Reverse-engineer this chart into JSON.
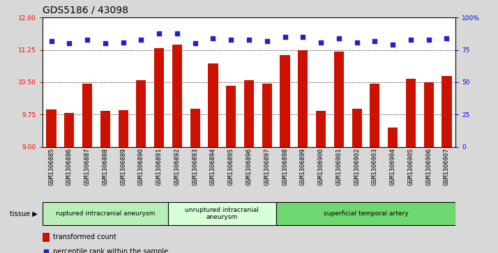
{
  "title": "GDS5186 / 43098",
  "samples": [
    "GSM1306885",
    "GSM1306886",
    "GSM1306887",
    "GSM1306888",
    "GSM1306889",
    "GSM1306890",
    "GSM1306891",
    "GSM1306892",
    "GSM1306893",
    "GSM1306894",
    "GSM1306895",
    "GSM1306896",
    "GSM1306897",
    "GSM1306898",
    "GSM1306899",
    "GSM1306900",
    "GSM1306901",
    "GSM1306902",
    "GSM1306903",
    "GSM1306904",
    "GSM1306905",
    "GSM1306906",
    "GSM1306907"
  ],
  "bar_values": [
    9.87,
    9.79,
    10.47,
    9.83,
    9.85,
    10.55,
    11.3,
    11.37,
    9.88,
    10.93,
    10.42,
    10.55,
    10.47,
    11.13,
    11.25,
    9.84,
    11.22,
    9.89,
    10.47,
    9.44,
    10.58,
    10.5,
    10.65
  ],
  "dot_values": [
    82,
    80,
    83,
    80,
    81,
    83,
    88,
    88,
    80,
    84,
    83,
    83,
    82,
    85,
    85,
    81,
    84,
    81,
    82,
    79,
    83,
    83,
    84
  ],
  "ylim_left": [
    9,
    12
  ],
  "ylim_right": [
    0,
    100
  ],
  "yticks_left": [
    9,
    9.75,
    10.5,
    11.25,
    12
  ],
  "yticks_right": [
    0,
    25,
    50,
    75,
    100
  ],
  "groups": [
    {
      "label": "ruptured intracranial aneurysm",
      "start": 0,
      "end": 7,
      "color": "#b8efb8"
    },
    {
      "label": "unruptured intracranial\naneurysm",
      "start": 7,
      "end": 13,
      "color": "#d8ffd8"
    },
    {
      "label": "superficial temporal artery",
      "start": 13,
      "end": 23,
      "color": "#70d870"
    }
  ],
  "bar_color": "#cc1100",
  "dot_color": "#2222cc",
  "bar_bottom": 9,
  "legend_bar_label": "transformed count",
  "legend_dot_label": "percentile rank within the sample",
  "tissue_label": "tissue",
  "background_color": "#d8d8d8",
  "plot_background": "#ffffff",
  "grid_color": "black",
  "title_fontsize": 10,
  "tick_fontsize": 6.5,
  "label_fontsize": 7.5
}
